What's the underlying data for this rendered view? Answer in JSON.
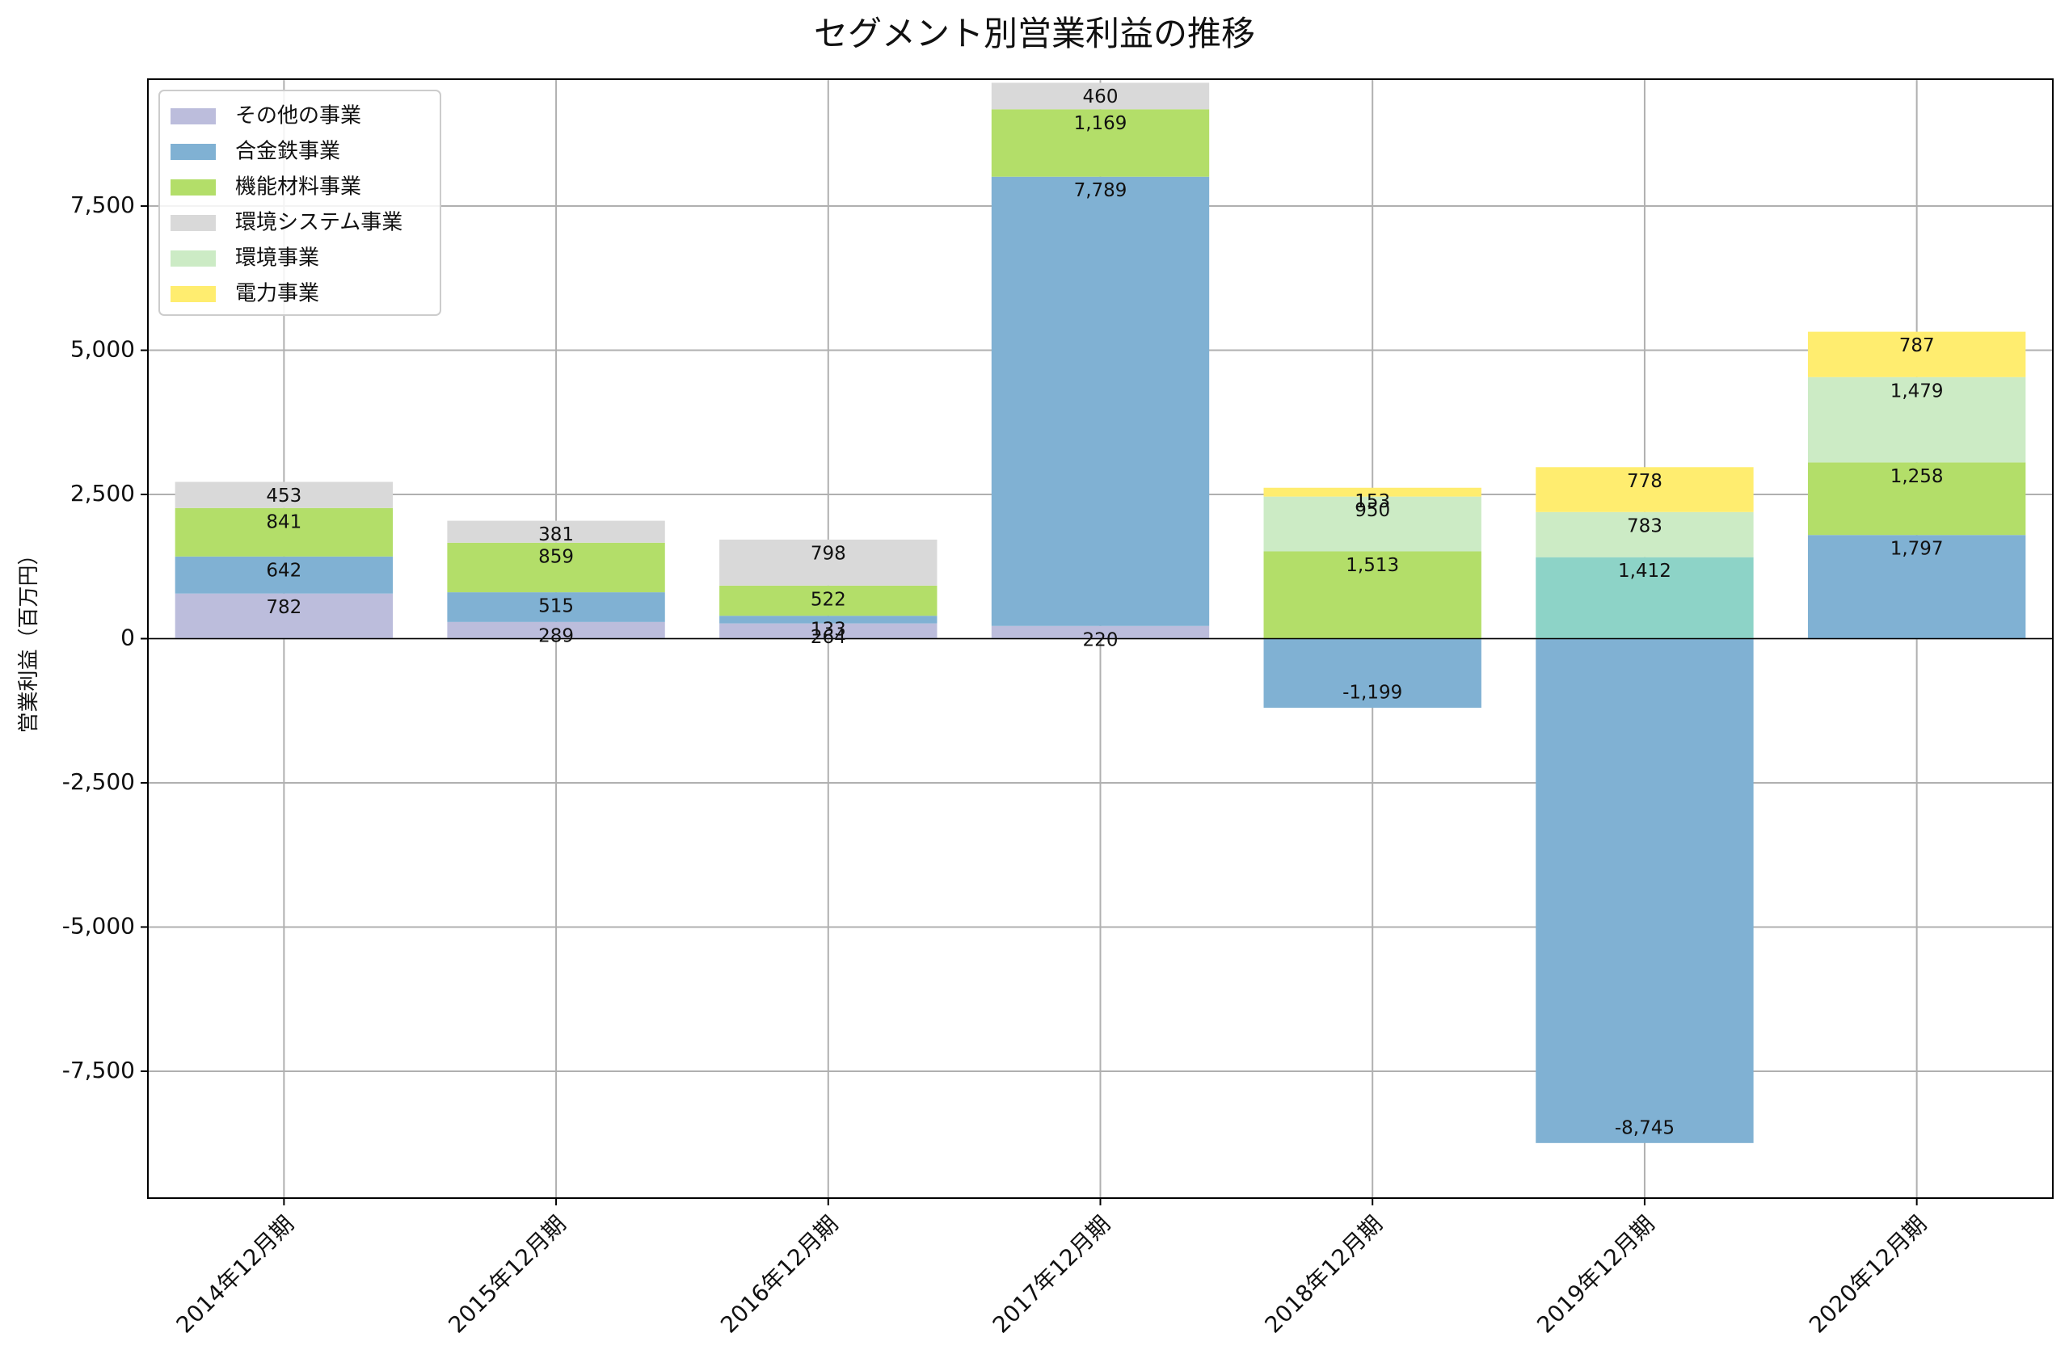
{
  "chart_data": {
    "type": "bar",
    "stacked": true,
    "title": "セグメント別営業利益の推移",
    "ylabel": "営業利益（百万円）",
    "xlabel": "",
    "categories": [
      "2014年12月期",
      "2015年12月期",
      "2016年12月期",
      "2017年12月期",
      "2018年12月期",
      "2019年12月期",
      "2020年12月期"
    ],
    "ylim": [
      -9700,
      9700
    ],
    "yticks": [
      -7500,
      -5000,
      -2500,
      0,
      2500,
      5000,
      7500
    ],
    "ytick_labels": [
      "-7,500",
      "-5,000",
      "-2,500",
      "0",
      "2,500",
      "5,000",
      "7,500"
    ],
    "grid": true,
    "legend_position": "top-left",
    "series": [
      {
        "name": "その他の事業",
        "color": "#bcbddc",
        "values": [
          782,
          289,
          264,
          220,
          null,
          null,
          null
        ],
        "labels": [
          "782",
          "289",
          "264",
          "220",
          "",
          "",
          ""
        ]
      },
      {
        "name": "合金鉄事業",
        "color": "#80b1d3",
        "values": [
          642,
          515,
          133,
          7789,
          -1199,
          -8745,
          1797
        ],
        "labels": [
          "642",
          "515",
          "133",
          "7,789",
          "-1,199",
          "-8,745",
          "1,797"
        ]
      },
      {
        "name": "機能材料事業",
        "color": "#b3de69",
        "values": [
          841,
          859,
          522,
          1169,
          1513,
          null,
          1258
        ],
        "labels": [
          "841",
          "859",
          "522",
          "1,169",
          "1,513",
          "",
          "1,258"
        ]
      },
      {
        "name": "環境システム事業",
        "color": "#d9d9d9",
        "values": [
          453,
          381,
          798,
          460,
          null,
          null,
          null
        ],
        "labels": [
          "453",
          "381",
          "798",
          "460",
          "",
          "",
          ""
        ]
      },
      {
        "name": "環境事業",
        "color": "#ccebc5",
        "values": [
          null,
          null,
          null,
          null,
          950,
          783,
          1479
        ],
        "labels": [
          "",
          "",
          "",
          "",
          "950",
          "783",
          "1,479"
        ]
      },
      {
        "name": "電力事業",
        "color": "#ffed6f",
        "values": [
          null,
          null,
          null,
          null,
          153,
          778,
          787
        ],
        "labels": [
          "",
          "",
          "",
          "",
          "153",
          "778",
          "787"
        ]
      }
    ],
    "extra_segments": [
      {
        "category_index": 5,
        "value": 1412,
        "label": "1,412",
        "color": "#8dd3c7"
      }
    ]
  }
}
